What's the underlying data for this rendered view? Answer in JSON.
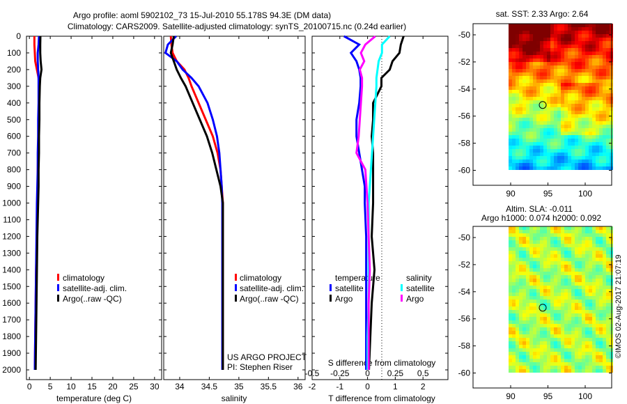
{
  "title_line1": "Argo profile: aoml 5902102_73 15-Jul-2010 55.178S 94.3E (DM data)",
  "title_line2": "Climatology: CARS2009. Satellite-adjusted climatology: synTS_20100715.nc (0.24d earlier)",
  "credit": "US ARGO PROJECT",
  "pi": "PI: Stephen Riser",
  "watermark": "©IMOS 02-Aug-2017 21:07:19",
  "colors": {
    "climatology": "#ff0000",
    "satellite": "#0000ff",
    "argo": "#000000",
    "sal_satellite": "#00ffff",
    "sal_argo": "#ff00ff"
  },
  "chart_data": [
    {
      "type": "line",
      "xlabel": "temperature (deg C)",
      "xlim": [
        -0.7,
        31.7
      ],
      "xticks": [
        "0",
        "5",
        "10",
        "15",
        "20",
        "25",
        "30"
      ],
      "xtick_values": [
        0,
        5,
        10,
        15,
        20,
        25,
        30
      ],
      "ylim": [
        0,
        2060
      ],
      "depth_ticks": [
        "0",
        "100",
        "200",
        "300",
        "400",
        "500",
        "600",
        "700",
        "800",
        "900",
        "1000",
        "1100",
        "1200",
        "1300",
        "1400",
        "1500",
        "1600",
        "1700",
        "1800",
        "1900",
        "2000"
      ],
      "depth": [
        0,
        50,
        100,
        150,
        200,
        250,
        300,
        400,
        500,
        600,
        700,
        800,
        900,
        1000,
        1200,
        1400,
        1600,
        1800,
        2000
      ],
      "legend": [
        "climatology",
        "satellite-adj. clim.",
        "Argo(..raw -QC)"
      ],
      "series": [
        {
          "name": "climatology",
          "values": [
            1.2,
            1.2,
            1.3,
            1.4,
            1.8,
            2.2,
            2.3,
            2.3,
            2.2,
            2.2,
            2.1,
            2.0,
            2.0,
            1.9,
            1.8,
            1.6,
            1.5,
            1.4,
            1.3
          ]
        },
        {
          "name": "satellite-adj. clim.",
          "values": [
            2.3,
            2.2,
            2.0,
            2.0,
            2.1,
            2.2,
            2.2,
            2.2,
            2.1,
            2.1,
            2.0,
            2.0,
            1.9,
            1.8,
            1.7,
            1.6,
            1.5,
            1.4,
            1.3
          ]
        },
        {
          "name": "Argo(..raw -QC)",
          "values": [
            2.64,
            2.6,
            2.6,
            2.7,
            2.9,
            2.6,
            2.5,
            2.4,
            2.4,
            2.3,
            2.3,
            2.2,
            2.2,
            2.1,
            1.9,
            1.8,
            1.7,
            1.6,
            1.5
          ]
        }
      ]
    },
    {
      "type": "line",
      "xlabel": "salinity",
      "xlim": [
        33.73,
        36.12
      ],
      "xticks": [
        "34",
        "34.5",
        "35",
        "35.5",
        "36"
      ],
      "xtick_values": [
        34,
        34.5,
        35,
        35.5,
        36
      ],
      "depth": [
        0,
        50,
        100,
        150,
        200,
        250,
        300,
        400,
        500,
        600,
        700,
        800,
        900,
        1000,
        1200,
        1400,
        1600,
        1800,
        2000
      ],
      "legend": [
        "climatology",
        "satellite-adj. clim.",
        "Argo(..raw -QC)"
      ],
      "series": [
        {
          "name": "climatology",
          "values": [
            33.85,
            33.86,
            33.88,
            33.95,
            34.08,
            34.15,
            34.2,
            34.32,
            34.44,
            34.56,
            34.64,
            34.69,
            34.71,
            34.73,
            34.73,
            34.73,
            34.73,
            34.73,
            34.73
          ]
        },
        {
          "name": "satellite-adj. clim.",
          "values": [
            33.94,
            33.8,
            33.76,
            33.95,
            34.05,
            34.2,
            34.32,
            34.47,
            34.56,
            34.63,
            34.67,
            34.69,
            34.71,
            34.72,
            34.72,
            34.72,
            34.72,
            34.72,
            34.72
          ]
        },
        {
          "name": "Argo(..raw -QC)",
          "values": [
            33.9,
            33.88,
            33.85,
            33.9,
            33.95,
            34.02,
            34.1,
            34.22,
            34.34,
            34.46,
            34.55,
            34.62,
            34.69,
            34.73,
            34.73,
            34.73,
            34.73,
            34.73,
            34.73
          ]
        }
      ]
    },
    {
      "type": "line",
      "xlabel": "T difference from climatology",
      "xlabel2": "S difference from climatology",
      "xlim": [
        -2.0,
        2.9
      ],
      "xticks": [
        "-2",
        "-1",
        "0",
        "1",
        "2"
      ],
      "xtick_values": [
        -2,
        -1,
        0,
        1,
        2
      ],
      "s_xticks": [
        "-0.5",
        "-0.25",
        "0",
        "0.25",
        "0.5"
      ],
      "s_xtick_values": [
        -0.5,
        -0.25,
        0,
        0.25,
        0.5
      ],
      "depth": [
        0,
        50,
        100,
        150,
        200,
        250,
        300,
        400,
        500,
        600,
        700,
        800,
        900,
        1000,
        1200,
        1400,
        1600,
        1800,
        2000
      ],
      "legend_temperature": {
        "title": "temperature",
        "items": [
          "satellite",
          "Argo"
        ]
      },
      "legend_salinity": {
        "title": "salinity",
        "items": [
          "satellite",
          "Argo"
        ]
      },
      "series": [
        {
          "name": "T satellite",
          "values": [
            -0.85,
            -0.3,
            -0.6,
            -0.4,
            -0.3,
            -0.25,
            -0.25,
            -0.3,
            -0.4,
            -0.4,
            -0.3,
            -0.2,
            -0.1,
            -0.1,
            -0.05,
            -0.05,
            -0.05,
            -0.05,
            -0.05
          ]
        },
        {
          "name": "T Argo",
          "values": [
            1.3,
            1.2,
            1.15,
            0.9,
            0.8,
            0.5,
            0.5,
            0.2,
            0.2,
            0.15,
            0.2,
            0.2,
            0.2,
            0.2,
            0.15,
            0.25,
            0.15,
            0.1,
            0.05
          ]
        },
        {
          "name": "S satellite",
          "values": [
            0.2,
            0.13,
            0.13,
            0.1,
            0.09,
            0.08,
            0.08,
            0.07,
            0.06,
            0.05,
            0.04,
            0.03,
            0.02,
            0.01,
            0.01,
            0.01,
            0.01,
            0.0,
            0.0
          ]
        },
        {
          "name": "S Argo",
          "values": [
            0.07,
            -0.02,
            -0.06,
            -0.03,
            -0.07,
            -0.05,
            -0.05,
            -0.06,
            -0.07,
            -0.08,
            -0.1,
            -0.02,
            -0.01,
            0.0,
            0.01,
            0.02,
            0.01,
            0.01,
            0.01
          ]
        }
      ]
    },
    {
      "type": "heatmap",
      "title": "sat. SST: 2.33 Argo: 2.64",
      "xticks": [
        "90",
        "95",
        "100"
      ],
      "xtick_values": [
        90,
        95,
        100
      ],
      "yticks": [
        "-50",
        "-52",
        "-54",
        "-56",
        "-58",
        "-60"
      ],
      "ytick_values": [
        -50,
        -52,
        -54,
        -56,
        -58,
        -60
      ],
      "profile_location": {
        "lon": 94.3,
        "lat": -55.178
      }
    },
    {
      "type": "heatmap",
      "title": "Altim. SLA: -0.011",
      "subtitle": "Argo h1000: 0.074 h2000: 0.092",
      "xticks": [
        "90",
        "95",
        "100"
      ],
      "xtick_values": [
        90,
        95,
        100
      ],
      "yticks": [
        "-50",
        "-52",
        "-54",
        "-56",
        "-58",
        "-60"
      ],
      "ytick_values": [
        -50,
        -52,
        -54,
        -56,
        -58,
        -60
      ],
      "profile_location": {
        "lon": 94.3,
        "lat": -55.178
      }
    }
  ]
}
